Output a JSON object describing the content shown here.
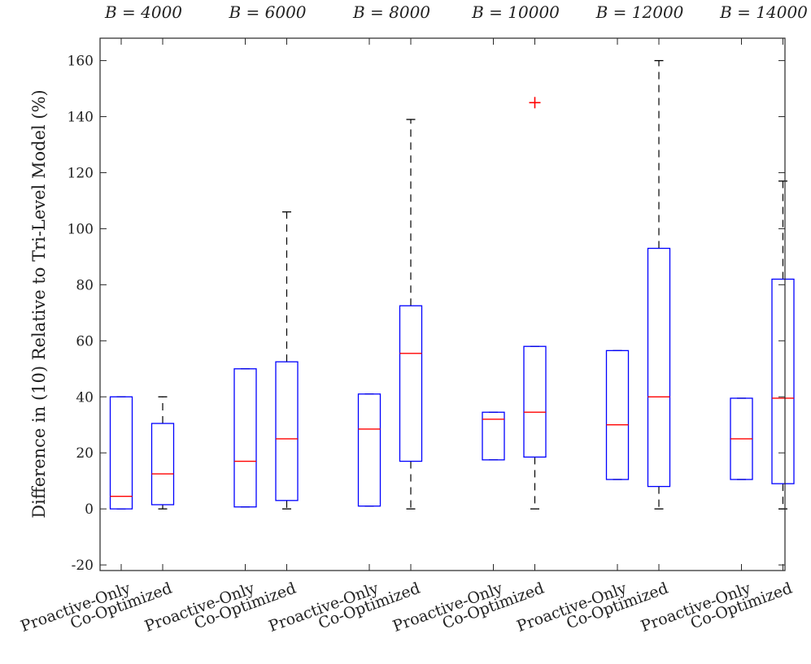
{
  "chart_data": {
    "type": "boxplot",
    "title": "",
    "ylabel": "Difference in (10) Relative to Tri-Level Model (%)",
    "xlabel": "",
    "ylim": [
      -22,
      168
    ],
    "yticks": [
      -20,
      0,
      20,
      40,
      60,
      80,
      100,
      120,
      140,
      160
    ],
    "ytick_labels": [
      "-20",
      "0",
      "20",
      "40",
      "60",
      "80",
      "100",
      "120",
      "140",
      "160"
    ],
    "box_color": "#0000ff",
    "median_color": "#ff0000",
    "whisker_color": "#000000",
    "outlier_color": "#ff0000",
    "groups": [
      {
        "label": "B = 4000",
        "boxes": [
          {
            "category": "Proactive-Only",
            "whisker_low": 0,
            "q1": 0,
            "median": 4.5,
            "q3": 40,
            "whisker_high": 40,
            "outliers": []
          },
          {
            "category": "Co-Optimized",
            "whisker_low": 0,
            "q1": 1.5,
            "median": 12.5,
            "q3": 30.5,
            "whisker_high": 40,
            "outliers": []
          }
        ]
      },
      {
        "label": "B = 6000",
        "boxes": [
          {
            "category": "Proactive-Only",
            "whisker_low": 0.7,
            "q1": 0.7,
            "median": 17,
            "q3": 50,
            "whisker_high": 50,
            "outliers": []
          },
          {
            "category": "Co-Optimized",
            "whisker_low": 0,
            "q1": 3,
            "median": 25,
            "q3": 52.5,
            "whisker_high": 106,
            "outliers": []
          }
        ]
      },
      {
        "label": "B = 8000",
        "boxes": [
          {
            "category": "Proactive-Only",
            "whisker_low": 1,
            "q1": 1,
            "median": 28.5,
            "q3": 41,
            "whisker_high": 41,
            "outliers": []
          },
          {
            "category": "Co-Optimized",
            "whisker_low": 0,
            "q1": 17,
            "median": 55.5,
            "q3": 72.5,
            "whisker_high": 139,
            "outliers": []
          }
        ]
      },
      {
        "label": "B = 10000",
        "boxes": [
          {
            "category": "Proactive-Only",
            "whisker_low": 17.5,
            "q1": 17.5,
            "median": 32,
            "q3": 34.5,
            "whisker_high": 34.5,
            "outliers": []
          },
          {
            "category": "Co-Optimized",
            "whisker_low": 0,
            "q1": 18.5,
            "median": 34.5,
            "q3": 58,
            "whisker_high": 58,
            "outliers": [
              145
            ]
          }
        ]
      },
      {
        "label": "B = 12000",
        "boxes": [
          {
            "category": "Proactive-Only",
            "whisker_low": 10.5,
            "q1": 10.5,
            "median": 30,
            "q3": 56.5,
            "whisker_high": 56.5,
            "outliers": []
          },
          {
            "category": "Co-Optimized",
            "whisker_low": 0,
            "q1": 8,
            "median": 40,
            "q3": 93,
            "whisker_high": 160,
            "outliers": []
          }
        ]
      },
      {
        "label": "B = 14000",
        "boxes": [
          {
            "category": "Proactive-Only",
            "whisker_low": 10.5,
            "q1": 10.5,
            "median": 25,
            "q3": 39.5,
            "whisker_high": 39.5,
            "outliers": []
          },
          {
            "category": "Co-Optimized",
            "whisker_low": 0,
            "q1": 9,
            "median": 39.5,
            "q3": 82,
            "whisker_high": 117,
            "outliers": []
          }
        ]
      }
    ]
  }
}
